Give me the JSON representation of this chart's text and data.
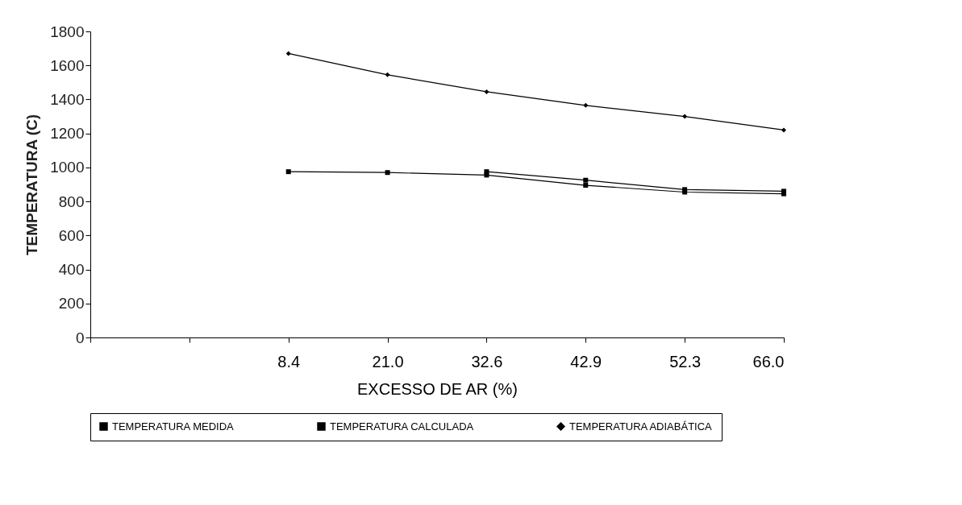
{
  "chart_data": {
    "type": "line",
    "xlabel": "EXCESSO DE AR (%)",
    "ylabel": "TEMPERATURA (C)",
    "categories": [
      null,
      null,
      "8.4",
      "21.0",
      "32.6",
      "42.9",
      "52.3",
      "66.0"
    ],
    "ylim": [
      0,
      1800
    ],
    "yticks": [
      0,
      200,
      400,
      600,
      800,
      1000,
      1200,
      1400,
      1600,
      1800
    ],
    "grid": false,
    "legend": "bottom",
    "series": [
      {
        "name": "TEMPERATURA MEDIDA",
        "color": "#000000",
        "marker": "square",
        "values": [
          null,
          null,
          975,
          970,
          955,
          895,
          855,
          845
        ]
      },
      {
        "name": "TEMPERATURA CALCULADA",
        "color": "#000000",
        "marker": "square",
        "values": [
          null,
          null,
          null,
          null,
          975,
          925,
          870,
          860
        ]
      },
      {
        "name": "TEMPERATURA ADIABÁTICA",
        "color": "#000000",
        "marker": "diamond",
        "values": [
          null,
          null,
          1670,
          1545,
          1445,
          1365,
          1300,
          1220
        ]
      }
    ]
  }
}
